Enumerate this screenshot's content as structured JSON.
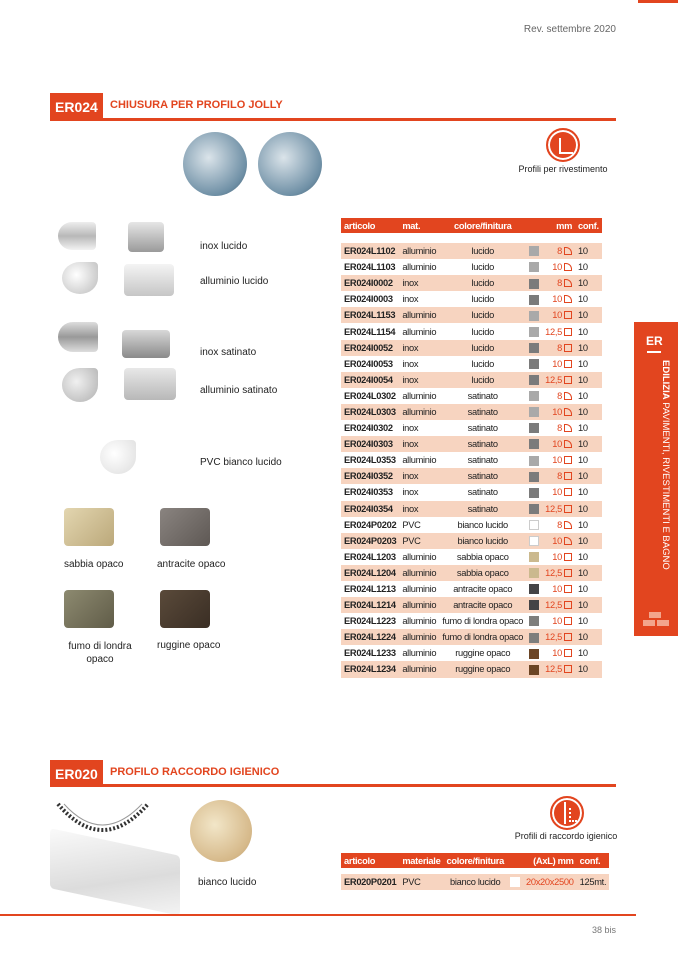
{
  "header": {
    "revision": "Rev. settembre 2020"
  },
  "accent": "#e2451f",
  "section1": {
    "code": "ER024",
    "title": "CHIUSURA PER PROFILO JOLLY",
    "category_icon": "wall-tile-icon",
    "category_label": "Profili per rivestimento",
    "product_labels": {
      "inox_lucido": "inox lucido",
      "alluminio_lucido": "alluminio lucido",
      "inox_satinato": "inox satinato",
      "alluminio_satinato": "alluminio satinato",
      "pvc": "PVC bianco lucido",
      "sabbia": "sabbia opaco",
      "antracite": "antracite opaco",
      "fumo": "fumo di londra opaco",
      "ruggine": "ruggine opaco"
    },
    "table": {
      "headers": [
        "articolo",
        "mat.",
        "colore/finitura",
        "mm",
        "conf."
      ],
      "rows": [
        {
          "code": "ER024L1102",
          "mat": "alluminio",
          "finish": "lucido",
          "color": "#a9a9a9",
          "mm": "8",
          "shape": "round",
          "conf": "10"
        },
        {
          "code": "ER024L1103",
          "mat": "alluminio",
          "finish": "lucido",
          "color": "#a9a9a9",
          "mm": "10",
          "shape": "round",
          "conf": "10"
        },
        {
          "code": "ER024I0002",
          "mat": "inox",
          "finish": "lucido",
          "color": "#7b7b7b",
          "mm": "8",
          "shape": "round",
          "conf": "10"
        },
        {
          "code": "ER024I0003",
          "mat": "inox",
          "finish": "lucido",
          "color": "#7b7b7b",
          "mm": "10",
          "shape": "round",
          "conf": "10"
        },
        {
          "code": "ER024L1153",
          "mat": "alluminio",
          "finish": "lucido",
          "color": "#a9a9a9",
          "mm": "10",
          "shape": "square",
          "conf": "10"
        },
        {
          "code": "ER024L1154",
          "mat": "alluminio",
          "finish": "lucido",
          "color": "#a9a9a9",
          "mm": "12,5",
          "shape": "square",
          "conf": "10"
        },
        {
          "code": "ER024I0052",
          "mat": "inox",
          "finish": "lucido",
          "color": "#7b7b7b",
          "mm": "8",
          "shape": "square",
          "conf": "10"
        },
        {
          "code": "ER024I0053",
          "mat": "inox",
          "finish": "lucido",
          "color": "#7b7b7b",
          "mm": "10",
          "shape": "square",
          "conf": "10"
        },
        {
          "code": "ER024I0054",
          "mat": "inox",
          "finish": "lucido",
          "color": "#7b7b7b",
          "mm": "12,5",
          "shape": "square",
          "conf": "10"
        },
        {
          "code": "ER024L0302",
          "mat": "alluminio",
          "finish": "satinato",
          "color": "#a9a9a9",
          "mm": "8",
          "shape": "round",
          "conf": "10"
        },
        {
          "code": "ER024L0303",
          "mat": "alluminio",
          "finish": "satinato",
          "color": "#a9a9a9",
          "mm": "10",
          "shape": "round",
          "conf": "10"
        },
        {
          "code": "ER024I0302",
          "mat": "inox",
          "finish": "satinato",
          "color": "#7b7b7b",
          "mm": "8",
          "shape": "round",
          "conf": "10"
        },
        {
          "code": "ER024I0303",
          "mat": "inox",
          "finish": "satinato",
          "color": "#7b7b7b",
          "mm": "10",
          "shape": "round",
          "conf": "10"
        },
        {
          "code": "ER024L0353",
          "mat": "alluminio",
          "finish": "satinato",
          "color": "#a9a9a9",
          "mm": "10",
          "shape": "square",
          "conf": "10"
        },
        {
          "code": "ER024I0352",
          "mat": "inox",
          "finish": "satinato",
          "color": "#7b7b7b",
          "mm": "8",
          "shape": "square",
          "conf": "10"
        },
        {
          "code": "ER024I0353",
          "mat": "inox",
          "finish": "satinato",
          "color": "#7b7b7b",
          "mm": "10",
          "shape": "square",
          "conf": "10"
        },
        {
          "code": "ER024I0354",
          "mat": "inox",
          "finish": "satinato",
          "color": "#7b7b7b",
          "mm": "12,5",
          "shape": "square",
          "conf": "10"
        },
        {
          "code": "ER024P0202",
          "mat": "PVC",
          "finish": "bianco lucido",
          "color": "#ffffff",
          "mm": "8",
          "shape": "round",
          "conf": "10"
        },
        {
          "code": "ER024P0203",
          "mat": "PVC",
          "finish": "bianco lucido",
          "color": "#ffffff",
          "mm": "10",
          "shape": "round",
          "conf": "10"
        },
        {
          "code": "ER024L1203",
          "mat": "alluminio",
          "finish": "sabbia opaco",
          "color": "#cbb98e",
          "mm": "10",
          "shape": "square",
          "conf": "10"
        },
        {
          "code": "ER024L1204",
          "mat": "alluminio",
          "finish": "sabbia opaco",
          "color": "#cbb98e",
          "mm": "12,5",
          "shape": "square",
          "conf": "10"
        },
        {
          "code": "ER024L1213",
          "mat": "alluminio",
          "finish": "antracite opaco",
          "color": "#444446",
          "mm": "10",
          "shape": "square",
          "conf": "10"
        },
        {
          "code": "ER024L1214",
          "mat": "alluminio",
          "finish": "antracite opaco",
          "color": "#444446",
          "mm": "12,5",
          "shape": "square",
          "conf": "10"
        },
        {
          "code": "ER024L1223",
          "mat": "alluminio",
          "finish": "fumo di londra opaco",
          "color": "#7e7e7c",
          "mm": "10",
          "shape": "square",
          "conf": "10"
        },
        {
          "code": "ER024L1224",
          "mat": "alluminio",
          "finish": "fumo di londra opaco",
          "color": "#7e7e7c",
          "mm": "12,5",
          "shape": "square",
          "conf": "10"
        },
        {
          "code": "ER024L1233",
          "mat": "alluminio",
          "finish": "ruggine opaco",
          "color": "#6b4525",
          "mm": "10",
          "shape": "square",
          "conf": "10"
        },
        {
          "code": "ER024L1234",
          "mat": "alluminio",
          "finish": "ruggine opaco",
          "color": "#6b4525",
          "mm": "12,5",
          "shape": "square",
          "conf": "10"
        }
      ]
    }
  },
  "sidebar": {
    "code": "ER",
    "bold": "EDILIZIA",
    "rest": " PAVIMENTI, RIVESTIMENTI E BAGNO"
  },
  "section2": {
    "code": "ER020",
    "title": "PROFILO RACCORDO IGIENICO",
    "category_icon": "cove-profile-icon",
    "category_label": "Profili di raccordo igienico",
    "product_label": "bianco lucido",
    "table": {
      "headers": [
        "articolo",
        "materiale",
        "colore/finitura",
        "(AxL) mm",
        "conf."
      ],
      "rows": [
        {
          "code": "ER020P0201",
          "mat": "PVC",
          "finish": "bianco lucido",
          "color": "#ffffff",
          "size": "20x20x2500",
          "conf": "125mt."
        }
      ]
    }
  },
  "footer": {
    "page": "38 bis"
  }
}
